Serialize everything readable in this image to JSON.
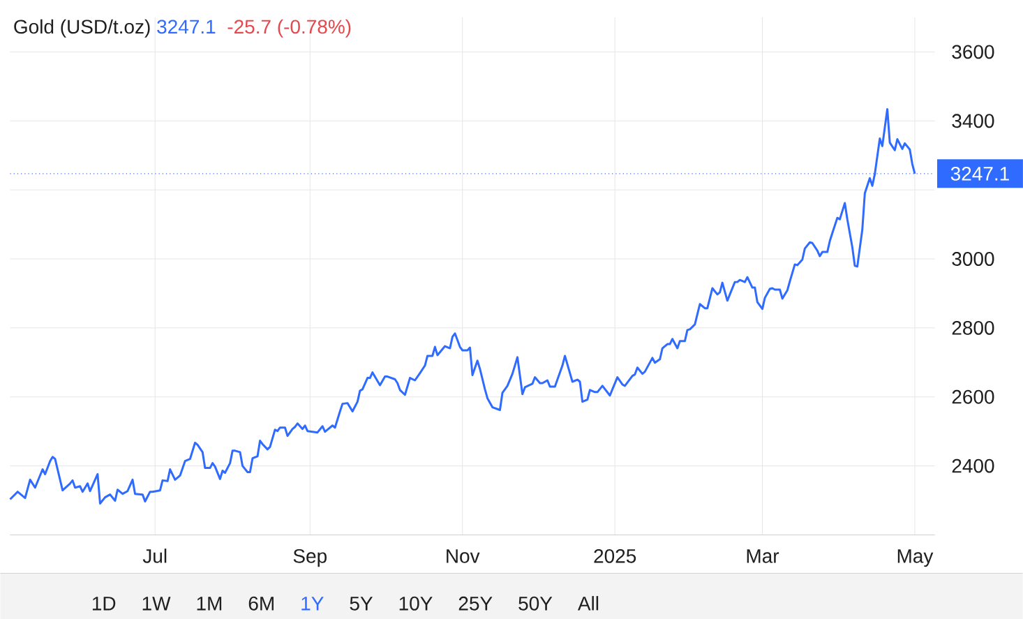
{
  "chart_data": {
    "type": "line",
    "title": "Gold (USD/t.oz)",
    "annotations": [
      "3247.1",
      "-25.7 (-0.78%)",
      "1D",
      "1W",
      "1M",
      "6M",
      "1Y",
      "5Y",
      "10Y",
      "25Y",
      "50Y",
      "All"
    ],
    "x": [
      "2024-05-04",
      "2024-05-07",
      "2024-05-10",
      "2024-05-12",
      "2024-05-14",
      "2024-05-17",
      "2024-05-18",
      "2024-05-20",
      "2024-05-21",
      "2024-05-22",
      "2024-05-25",
      "2024-05-28",
      "2024-05-29",
      "2024-05-30",
      "2024-06-01",
      "2024-06-02",
      "2024-06-04",
      "2024-06-05",
      "2024-06-08",
      "2024-06-09",
      "2024-06-11",
      "2024-06-13",
      "2024-06-15",
      "2024-06-16",
      "2024-06-18",
      "2024-06-20",
      "2024-06-22",
      "2024-06-23",
      "2024-06-26",
      "2024-06-27",
      "2024-06-29",
      "2024-06-30",
      "2024-07-03",
      "2024-07-04",
      "2024-07-06",
      "2024-07-07",
      "2024-07-09",
      "2024-07-11",
      "2024-07-13",
      "2024-07-15",
      "2024-07-17",
      "2024-07-18",
      "2024-07-20",
      "2024-07-21",
      "2024-07-23",
      "2024-07-24",
      "2024-07-25",
      "2024-07-27",
      "2024-07-28",
      "2024-07-29",
      "2024-07-31",
      "2024-08-01",
      "2024-08-02",
      "2024-08-04",
      "2024-08-05",
      "2024-08-07",
      "2024-08-08",
      "2024-08-09",
      "2024-08-11",
      "2024-08-12",
      "2024-08-13",
      "2024-08-15",
      "2024-08-16",
      "2024-08-18",
      "2024-08-19",
      "2024-08-20",
      "2024-08-22",
      "2024-08-23",
      "2024-08-25",
      "2024-08-26",
      "2024-08-27",
      "2024-08-29",
      "2024-08-30",
      "2024-08-31",
      "2024-09-04",
      "2024-09-06",
      "2024-09-07",
      "2024-09-10",
      "2024-09-11",
      "2024-09-13",
      "2024-09-14",
      "2024-09-16",
      "2024-09-18",
      "2024-09-20",
      "2024-09-21",
      "2024-09-22",
      "2024-09-24",
      "2024-09-25",
      "2024-09-26",
      "2024-09-29",
      "2024-10-01",
      "2024-10-02",
      "2024-10-05",
      "2024-10-06",
      "2024-10-07",
      "2024-10-09",
      "2024-10-11",
      "2024-10-13",
      "2024-10-15",
      "2024-10-17",
      "2024-10-18",
      "2024-10-20",
      "2024-10-21",
      "2024-10-22",
      "2024-10-25",
      "2024-10-27",
      "2024-10-28",
      "2024-10-29",
      "2024-10-31",
      "2024-11-01",
      "2024-11-03",
      "2024-11-04",
      "2024-11-05",
      "2024-11-07",
      "2024-11-08",
      "2024-11-10",
      "2024-11-11",
      "2024-11-13",
      "2024-11-16",
      "2024-11-17",
      "2024-11-19",
      "2024-11-21",
      "2024-11-23",
      "2024-11-25",
      "2024-11-26",
      "2024-11-29",
      "2024-11-30",
      "2024-12-02",
      "2024-12-03",
      "2024-12-05",
      "2024-12-06",
      "2024-12-08",
      "2024-12-11",
      "2024-12-12",
      "2024-12-15",
      "2024-12-17",
      "2024-12-18",
      "2024-12-19",
      "2024-12-21",
      "2024-12-22",
      "2024-12-24",
      "2024-12-25",
      "2024-12-27",
      "2024-12-30",
      "2024-12-31",
      "2025-01-02",
      "2025-01-04",
      "2025-01-05",
      "2025-01-08",
      "2025-01-09",
      "2025-01-10",
      "2025-01-12",
      "2025-01-13",
      "2025-01-16",
      "2025-01-17",
      "2025-01-19",
      "2025-01-20",
      "2025-01-22",
      "2025-01-23",
      "2025-01-24",
      "2025-01-26",
      "2025-01-27",
      "2025-01-29",
      "2025-01-30",
      "2025-01-31",
      "2025-02-02",
      "2025-02-04",
      "2025-02-06",
      "2025-02-07",
      "2025-02-09",
      "2025-02-11",
      "2025-02-12",
      "2025-02-13",
      "2025-02-15",
      "2025-02-16",
      "2025-02-18",
      "2025-02-19",
      "2025-02-20",
      "2025-02-22",
      "2025-02-23",
      "2025-02-25",
      "2025-02-26",
      "2025-02-27",
      "2025-03-01",
      "2025-03-02",
      "2025-03-04",
      "2025-03-05",
      "2025-03-06",
      "2025-03-08",
      "2025-03-09",
      "2025-03-11",
      "2025-03-12",
      "2025-03-14",
      "2025-03-15",
      "2025-03-17",
      "2025-03-18",
      "2025-03-20",
      "2025-03-21",
      "2025-03-23",
      "2025-03-24",
      "2025-03-25",
      "2025-03-27",
      "2025-03-28",
      "2025-03-29",
      "2025-03-31",
      "2025-04-01",
      "2025-04-03",
      "2025-04-04",
      "2025-04-06",
      "2025-04-07",
      "2025-04-08",
      "2025-04-10",
      "2025-04-11",
      "2025-04-13",
      "2025-04-14",
      "2025-04-15",
      "2025-04-17",
      "2025-04-18",
      "2025-04-20",
      "2025-04-21",
      "2025-04-23",
      "2025-04-24",
      "2025-04-26",
      "2025-04-27",
      "2025-04-29",
      "2025-04-30",
      "2025-05-01"
    ],
    "values": [
      2303,
      2325,
      2307,
      2360,
      2337,
      2390,
      2376,
      2414,
      2426,
      2420,
      2329,
      2349,
      2358,
      2337,
      2341,
      2325,
      2349,
      2327,
      2376,
      2291,
      2309,
      2317,
      2299,
      2331,
      2319,
      2327,
      2360,
      2319,
      2317,
      2297,
      2325,
      2325,
      2329,
      2358,
      2356,
      2390,
      2360,
      2372,
      2414,
      2420,
      2467,
      2461,
      2440,
      2394,
      2394,
      2408,
      2398,
      2362,
      2386,
      2380,
      2408,
      2444,
      2444,
      2440,
      2400,
      2382,
      2382,
      2422,
      2428,
      2473,
      2463,
      2448,
      2455,
      2505,
      2501,
      2511,
      2511,
      2487,
      2507,
      2513,
      2523,
      2507,
      2517,
      2501,
      2497,
      2515,
      2499,
      2517,
      2511,
      2558,
      2580,
      2582,
      2558,
      2586,
      2618,
      2622,
      2655,
      2655,
      2671,
      2634,
      2659,
      2659,
      2651,
      2640,
      2620,
      2606,
      2655,
      2648,
      2669,
      2691,
      2719,
      2719,
      2745,
      2721,
      2747,
      2741,
      2774,
      2784,
      2745,
      2735,
      2735,
      2743,
      2663,
      2705,
      2681,
      2622,
      2596,
      2570,
      2562,
      2612,
      2632,
      2667,
      2715,
      2608,
      2628,
      2638,
      2657,
      2640,
      2640,
      2648,
      2630,
      2630,
      2691,
      2719,
      2644,
      2650,
      2644,
      2586,
      2592,
      2620,
      2614,
      2614,
      2632,
      2604,
      2622,
      2657,
      2636,
      2632,
      2661,
      2665,
      2685,
      2667,
      2673,
      2713,
      2699,
      2709,
      2741,
      2753,
      2753,
      2768,
      2741,
      2762,
      2762,
      2794,
      2796,
      2810,
      2869,
      2857,
      2857,
      2915,
      2897,
      2903,
      2931,
      2879,
      2897,
      2933,
      2933,
      2939,
      2933,
      2947,
      2917,
      2917,
      2875,
      2855,
      2887,
      2913,
      2915,
      2911,
      2911,
      2885,
      2909,
      2935,
      2984,
      2982,
      2998,
      3030,
      3048,
      3046,
      3024,
      3008,
      3020,
      3020,
      3052,
      3075,
      3119,
      3115,
      3162,
      3115,
      3034,
      2980,
      2978,
      3085,
      3190,
      3234,
      3212,
      3246,
      3349,
      3327,
      3434,
      3337,
      3315,
      3347,
      3319,
      3335,
      3317,
      3275,
      3247.1
    ],
    "color": "#2f6bff",
    "xlim": [
      "2024-05-04",
      "2025-05-09"
    ],
    "xticks": [
      {
        "value": "2024-07-01",
        "label": "Jul"
      },
      {
        "value": "2024-09-01",
        "label": "Sep"
      },
      {
        "value": "2024-11-01",
        "label": "Nov"
      },
      {
        "value": "2025-01-01",
        "label": "2025"
      },
      {
        "value": "2025-03-01",
        "label": "Mar"
      },
      {
        "value": "2025-05-01",
        "label": "May"
      }
    ],
    "ylim": [
      2200,
      3700
    ],
    "yticks": [
      2400,
      2600,
      2800,
      3000,
      {
        "value": 3200,
        "label": null
      },
      3400,
      3600
    ],
    "ref_lines": [
      {
        "axis": "y",
        "value": 3247.1,
        "label": "3247.1",
        "color": "#2f6bff",
        "line_style": "dotted"
      }
    ],
    "grid": true,
    "marker": "none",
    "line_style": "solid"
  }
}
